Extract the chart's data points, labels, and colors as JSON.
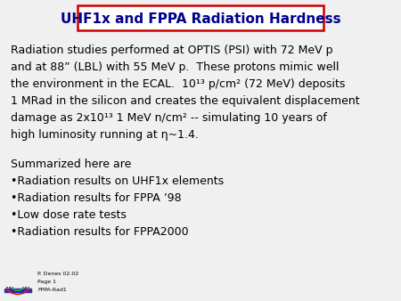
{
  "title": "UHF1x and FPPA Radiation Hardness",
  "title_color": "#00008B",
  "title_box_edge_color": "#CC0000",
  "bg_color": "#F0F0F0",
  "para_lines": [
    "Radiation studies performed at OPTIS (PSI) with 72 MeV p",
    "and at 88” (LBL) with 55 MeV p.  These protons mimic well",
    "the environment in the ECAL.  10¹³ p/cm² (72 MeV) deposits",
    "1 MRad in the silicon and creates the equivalent displacement",
    "damage as 2x10¹³ 1 MeV n/cm² -- simulating 10 years of",
    "high luminosity running at η~1.4."
  ],
  "bullet_intro": "Summarized here are",
  "bullets": [
    "Radiation results on UHF1x elements",
    "Radiation results for FPPA ’98",
    "Low dose rate tests",
    "Radiation results for FPPA2000"
  ],
  "footer_lines": [
    "P. Denes 02.02",
    "Page 1",
    "FPPA-Rad1"
  ],
  "body_fontsize": 9.0,
  "title_fontsize": 11.0
}
